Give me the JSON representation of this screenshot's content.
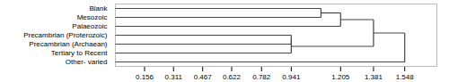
{
  "chart_data": {
    "type": "dendrogram",
    "categories": [
      "Blank",
      "Mesozoic",
      "Palaeozoic",
      "Precambrian (Proterozoic)",
      "Precambrian (Archaean)",
      "Tertiary to Recent",
      "Other- varied"
    ],
    "merges": [
      {
        "children": [
          0,
          1
        ],
        "height": 1.1
      },
      {
        "children": [
          7,
          2
        ],
        "height": 1.205
      },
      {
        "children": [
          3,
          4
        ],
        "height": 0.941
      },
      {
        "children": [
          9,
          5
        ],
        "height": 0.941
      },
      {
        "children": [
          8,
          10
        ],
        "height": 1.381
      },
      {
        "children": [
          11,
          6
        ],
        "height": 1.548
      }
    ],
    "color": "#444444",
    "xlim": [
      0.0,
      1.72
    ],
    "xticks": [
      0.156,
      0.311,
      0.467,
      0.622,
      0.782,
      0.941,
      1.205,
      1.381,
      1.548
    ]
  }
}
